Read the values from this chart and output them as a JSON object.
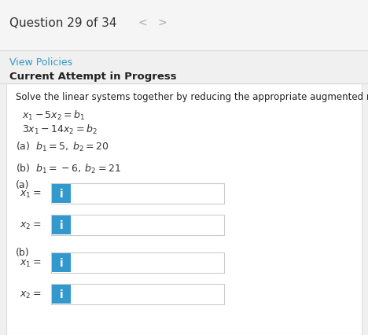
{
  "title": "Question 29 of 34",
  "link_text": "View Policies",
  "link_color": "#3399cc",
  "bold_header": "Current Attempt in Progress",
  "problem_text": "Solve the linear systems together by reducing the appropriate augmented matrix.",
  "eq1": "$x_1 - 5x_2 = b_1$",
  "eq2": "$3x_1 - 14x_2 = b_2$",
  "part_a_cond": "(a)  $b_1 = 5,\\;  b_2 = 20$",
  "part_b_cond": "(b)  $b_1 = -6,\\; b_2 = 21$",
  "section_a": "(a)",
  "section_b": "(b)",
  "bg_color": "#f0f0f0",
  "panel_color": "#ffffff",
  "box_border_color": "#cccccc",
  "blue_btn_color": "#3399cc",
  "title_fontsize": 11,
  "body_fontsize": 9,
  "small_fontsize": 8.5
}
